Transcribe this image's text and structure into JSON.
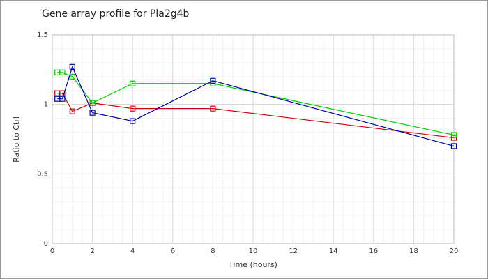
{
  "chart_data": {
    "type": "line",
    "title": "Gene array profile for Pla2g4b",
    "x_label": "Time (hours)",
    "y_label": "Ratio to Ctrl",
    "x": [
      0.25,
      0.5,
      1,
      2,
      4,
      8,
      20
    ],
    "series": [
      {
        "color": "#cc0000",
        "values": [
          1.08,
          1.08,
          0.95,
          1.01,
          0.97,
          0.97,
          0.76
        ]
      },
      {
        "color": "#00cc00",
        "values": [
          1.23,
          1.23,
          1.2,
          1.01,
          1.15,
          1.15,
          0.78
        ]
      },
      {
        "color": "#0000aa",
        "values": [
          1.04,
          1.04,
          1.27,
          0.94,
          0.88,
          1.17,
          0.7
        ]
      }
    ],
    "xlim": [
      0,
      20
    ],
    "xticks": [
      0,
      2,
      4,
      6,
      8,
      10,
      12,
      14,
      16,
      18,
      20
    ],
    "ylim": [
      0,
      1.5
    ],
    "yticks": [
      0,
      0.5,
      1,
      1.5
    ],
    "grid": true
  }
}
